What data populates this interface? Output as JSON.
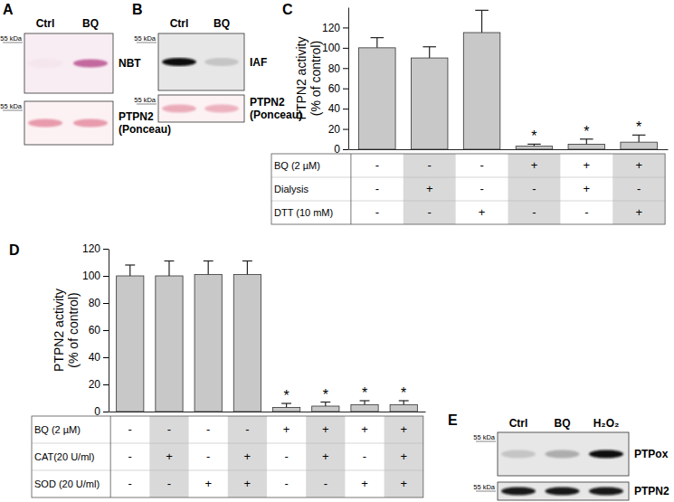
{
  "chart_data": [
    {
      "type": "blot",
      "panel": "A",
      "categories": [
        "Ctrl",
        "BQ"
      ],
      "ladder": "55 kDa",
      "series": [
        {
          "name": "NBT",
          "color": "#b5478a",
          "values": [
            0.05,
            0.8
          ]
        },
        {
          "name": "PTPN2 (Ponceau)",
          "color": "#e07f93",
          "values": [
            0.75,
            0.75
          ]
        }
      ]
    },
    {
      "type": "blot",
      "panel": "B",
      "categories": [
        "Ctrl",
        "BQ"
      ],
      "ladder": "55 kDa",
      "series": [
        {
          "name": "IAF",
          "color": "#111111",
          "values": [
            1,
            0.15
          ]
        },
        {
          "name": "PTPN2 (Ponceau)",
          "color": "#e07f93",
          "values": [
            0.6,
            0.55
          ]
        }
      ]
    },
    {
      "type": "bar",
      "panel": "C",
      "categories": [
        null,
        null,
        null,
        null,
        null,
        null
      ],
      "values": [
        100,
        90,
        115,
        3,
        5,
        7
      ],
      "errors": [
        10,
        11,
        22,
        2,
        5,
        7
      ],
      "significance": [
        null,
        null,
        null,
        "*",
        "*",
        "*"
      ],
      "color": "#c8c8c8",
      "y_label": "PTPN2 activity (% of control)",
      "ylim": [
        0,
        140
      ],
      "yticks": [
        0,
        20,
        40,
        60,
        80,
        100,
        120
      ],
      "conditions": [
        {
          "name": "BQ (2 µM)",
          "values": [
            "-",
            "-",
            "-",
            "+",
            "+",
            "+"
          ]
        },
        {
          "name": "Dialysis",
          "values": [
            "-",
            "+",
            "-",
            "-",
            "+",
            "-"
          ]
        },
        {
          "name": "DTT (10 mM)",
          "values": [
            "-",
            "-",
            "+",
            "-",
            "-",
            "+"
          ]
        }
      ]
    },
    {
      "type": "bar",
      "panel": "D",
      "categories": [
        null,
        null,
        null,
        null,
        null,
        null,
        null,
        null
      ],
      "values": [
        100,
        100,
        101,
        101,
        3,
        4,
        5,
        5
      ],
      "errors": [
        8,
        11,
        10,
        10,
        3,
        3,
        3,
        3
      ],
      "significance": [
        null,
        null,
        null,
        null,
        "*",
        "*",
        "*",
        "*"
      ],
      "color": "#c8c8c8",
      "y_label": "PTPN2 activity (% of control)",
      "ylim": [
        0,
        120
      ],
      "yticks": [
        0,
        20,
        40,
        60,
        80,
        100,
        120
      ],
      "conditions": [
        {
          "name": "BQ (2 µM)",
          "values": [
            "-",
            "-",
            "-",
            "-",
            "+",
            "+",
            "+",
            "+"
          ]
        },
        {
          "name": "CAT(20 U/ml)",
          "values": [
            "-",
            "+",
            "-",
            "+",
            "-",
            "+",
            "-",
            "+"
          ]
        },
        {
          "name": "SOD (20 U/ml)",
          "values": [
            "-",
            "-",
            "+",
            "+",
            "-",
            "-",
            "+",
            "+"
          ]
        }
      ]
    },
    {
      "type": "blot",
      "panel": "E",
      "categories": [
        "Ctrl",
        "BQ",
        "H₂O₂"
      ],
      "ladder": "55 kDa",
      "series": [
        {
          "name": "PTPox",
          "color": "#111111",
          "values": [
            0.15,
            0.25,
            1
          ]
        },
        {
          "name": "PTPN2",
          "color": "#111111",
          "values": [
            0.95,
            0.95,
            0.95
          ]
        }
      ]
    }
  ]
}
